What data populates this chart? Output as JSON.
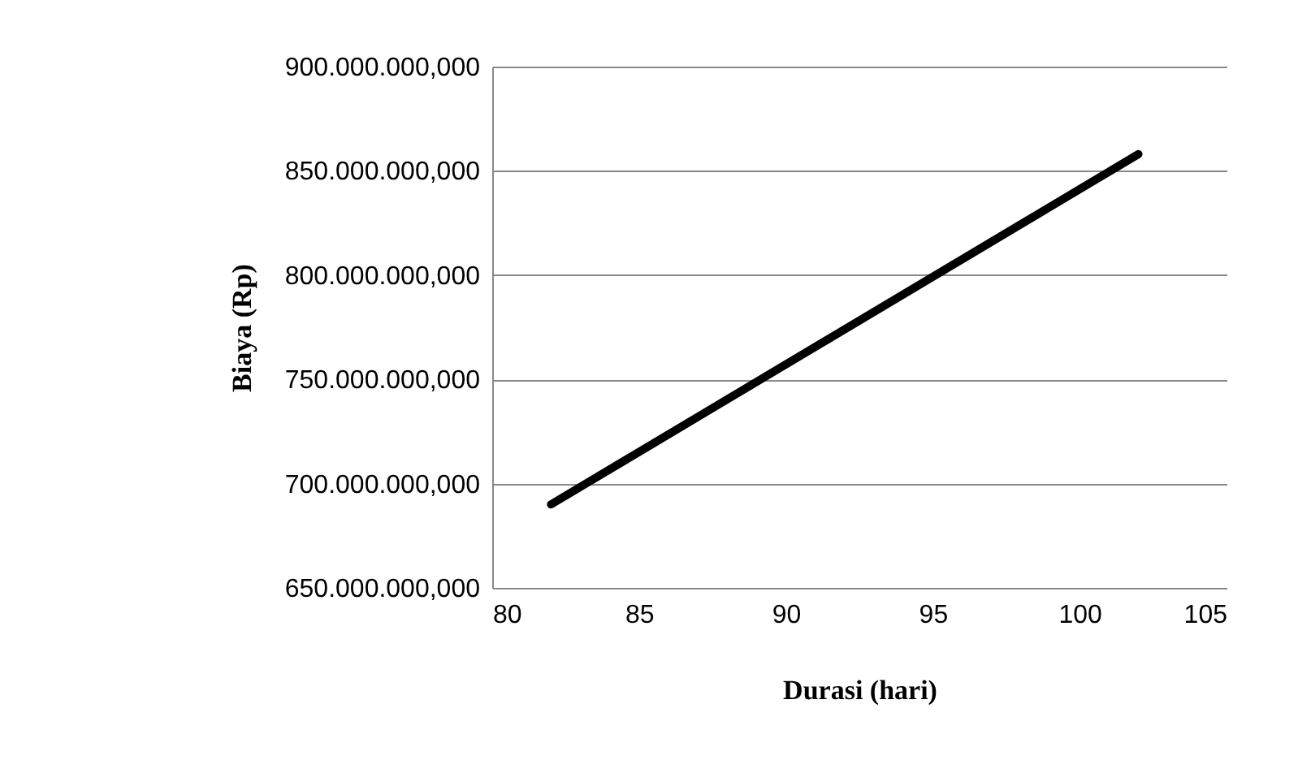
{
  "chart_data": {
    "type": "line",
    "xlabel": "Durasi (hari)",
    "ylabel": "Biaya (Rp)",
    "x": [
      82,
      102
    ],
    "series": [
      {
        "color": "#000000",
        "values": [
          690000000,
          858000000
        ]
      }
    ],
    "xlim": [
      80,
      105
    ],
    "xticks": [
      80,
      85,
      90,
      95,
      100,
      105
    ],
    "ylim": [
      650000000,
      900000000
    ],
    "yticks": [
      {
        "value": 650000000,
        "label": "650.000.000,000"
      },
      {
        "value": 700000000,
        "label": "700.000.000,000"
      },
      {
        "value": 750000000,
        "label": "750.000.000,000"
      },
      {
        "value": 800000000,
        "label": "800.000.000,000"
      },
      {
        "value": 850000000,
        "label": "850.000.000,000"
      },
      {
        "value": 900000000,
        "label": "900.000.000,000"
      }
    ],
    "grid": "y",
    "legend": false,
    "marker": "none",
    "line_style": "solid"
  }
}
